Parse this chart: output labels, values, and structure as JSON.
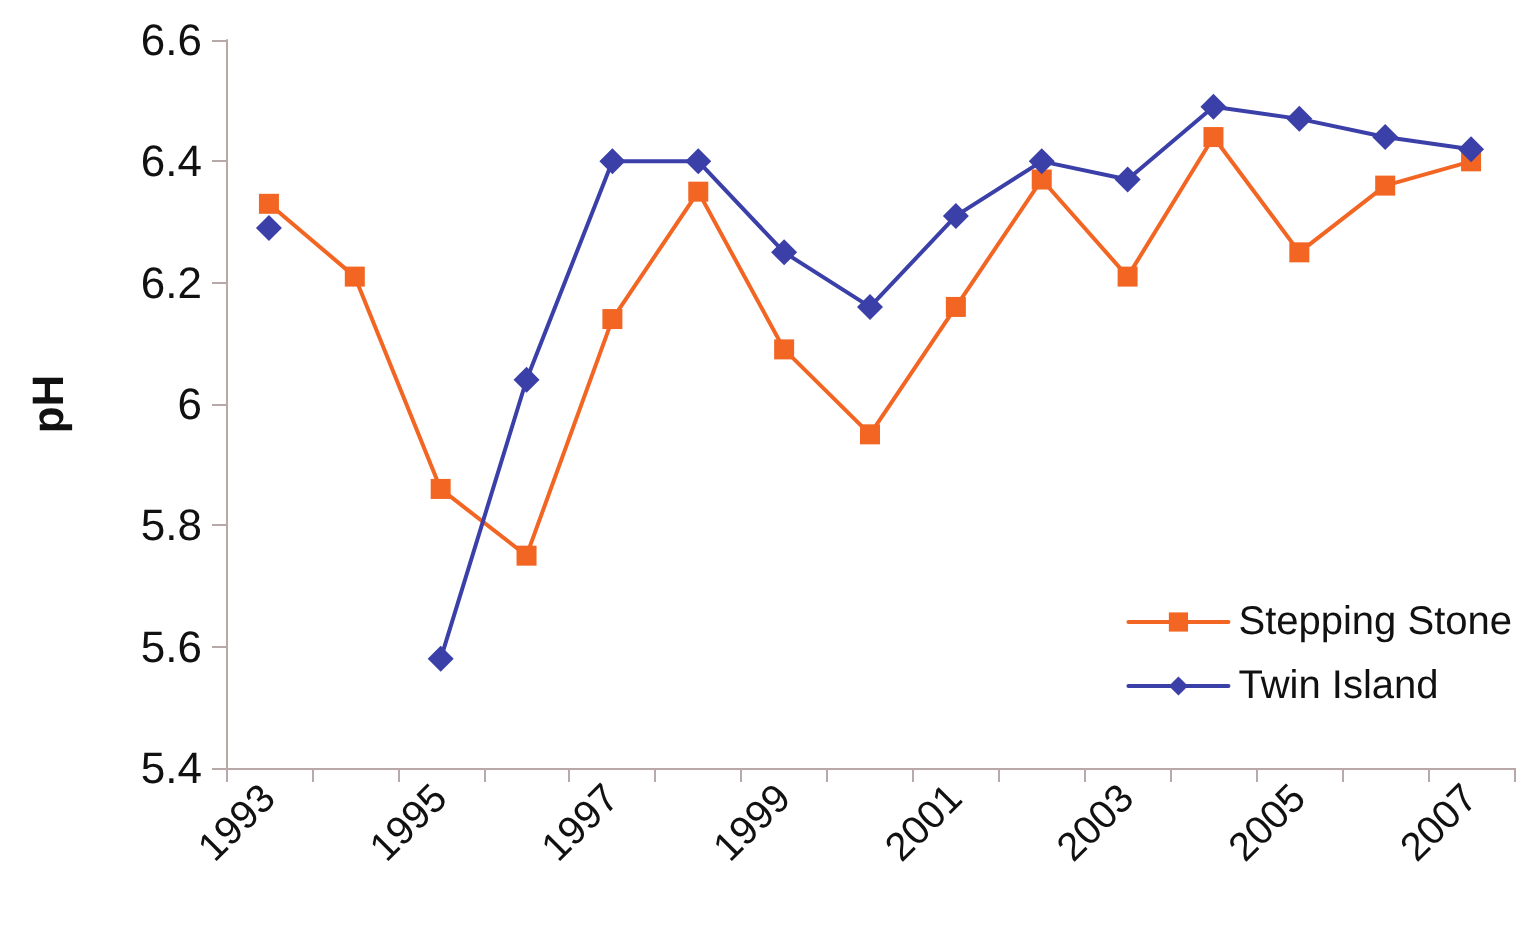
{
  "chart_data": {
    "type": "line",
    "ylabel": "pH",
    "categories": [
      "1993",
      null,
      "1995",
      null,
      "1997",
      null,
      "1999",
      null,
      "2001",
      null,
      "2003",
      null,
      "2005",
      null,
      "2007"
    ],
    "series": [
      {
        "name": "Stepping Stone",
        "color": "#f26522",
        "marker": "square",
        "values": [
          6.33,
          6.21,
          5.86,
          5.75,
          6.14,
          6.35,
          6.09,
          5.95,
          6.16,
          6.37,
          6.21,
          6.44,
          6.25,
          6.36,
          6.4
        ]
      },
      {
        "name": "Twin Island",
        "color": "#3b3fa8",
        "marker": "diamond",
        "values": [
          6.29,
          null,
          5.58,
          6.04,
          6.4,
          6.4,
          6.25,
          6.16,
          6.31,
          6.4,
          6.37,
          6.49,
          6.47,
          6.44,
          6.42
        ]
      }
    ],
    "ylim": [
      5.4,
      6.6
    ],
    "yticks": [
      5.4,
      5.6,
      5.8,
      6,
      6.2,
      6.4,
      6.6
    ],
    "grid": false,
    "legend": "bottom right",
    "line_style": "solid"
  }
}
